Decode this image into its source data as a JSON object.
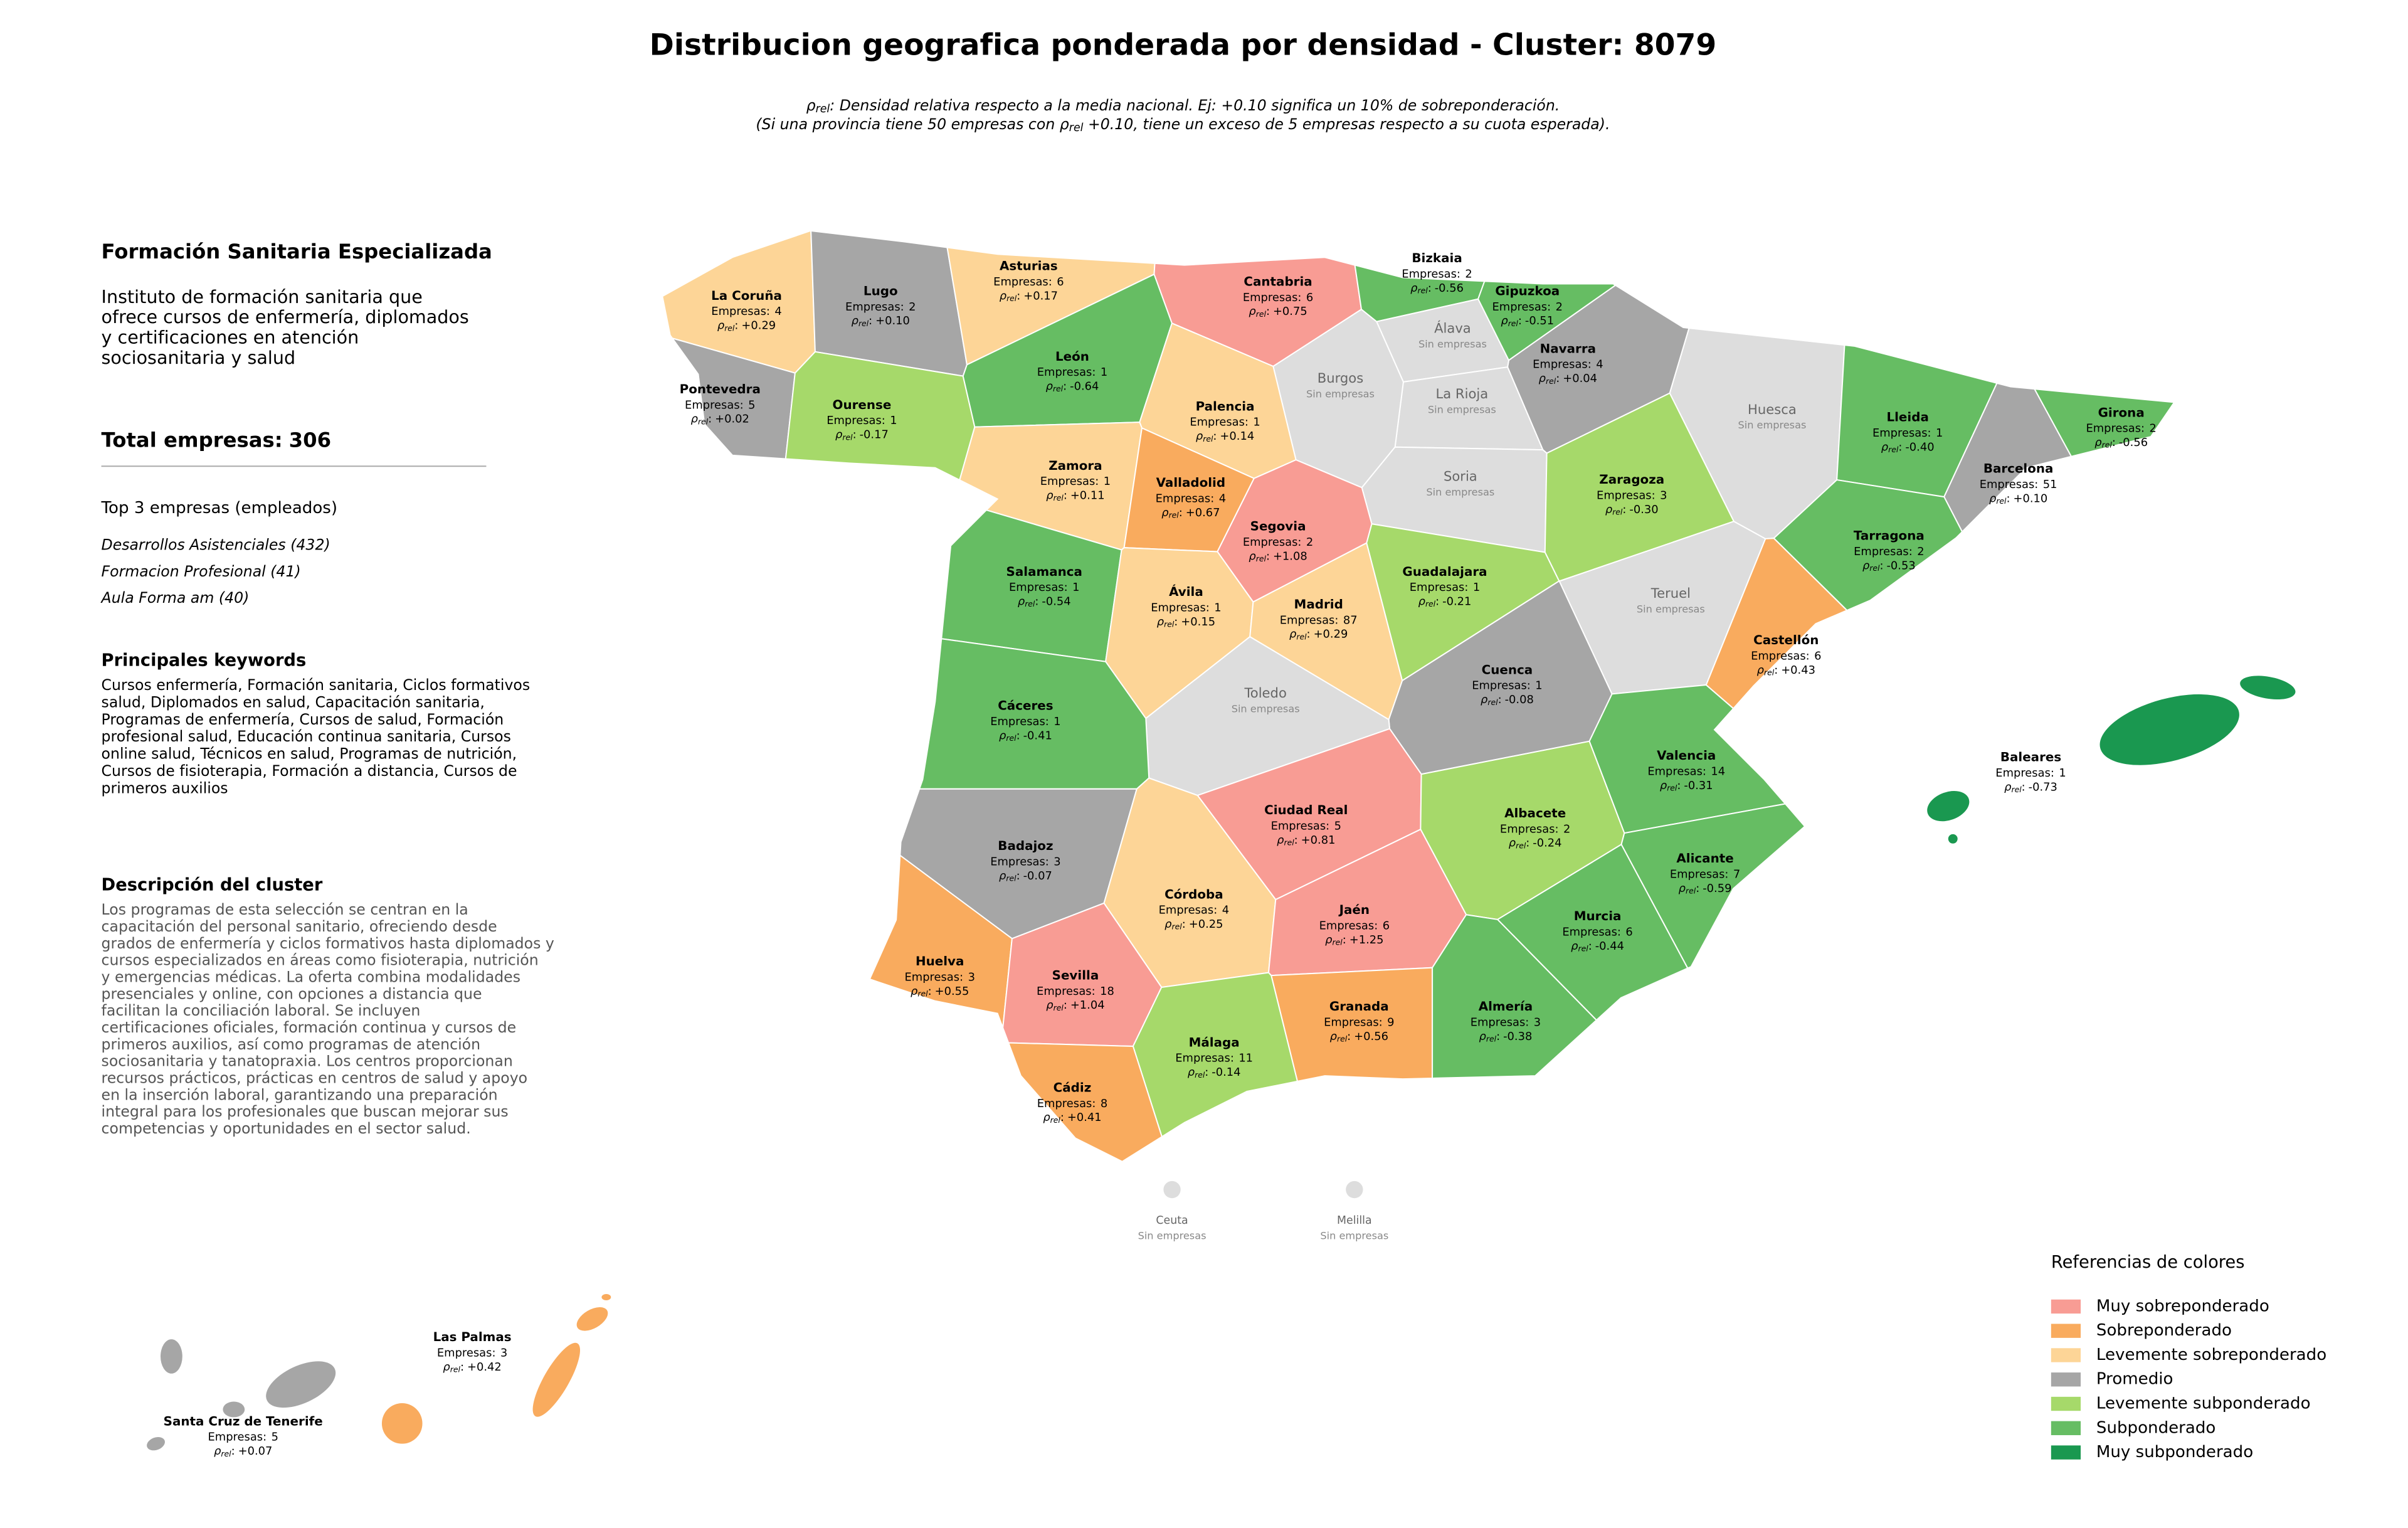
{
  "title": "Distribucion geografica ponderada por densidad - Cluster: 8079",
  "subtitle": [
    {
      "pre": "ρ",
      "sub": "rel",
      "post": ": Densidad relativa respecto a la media nacional. Ej: +0.10 significa un 10% de sobreponderación."
    },
    {
      "pre": "(Si una provincia tiene 50 empresas con ρ",
      "sub": "rel",
      "post": " +0.10, tiene un exceso de 5 empresas respecto a su cuota esperada)."
    }
  ],
  "labels": {
    "companies": "Empresas:",
    "rho": "ρ",
    "rho_sub": "rel",
    "rho_sep": ":",
    "none": "Sin empresas"
  },
  "sidebar": {
    "heading": "Formación Sanitaria Especializada",
    "intro": [
      "Instituto de formación sanitaria que",
      "ofrece cursos de enfermería, diplomados",
      "y certificaciones en atención",
      "sociosanitaria y salud"
    ],
    "total_label": "Total empresas:",
    "total": 306,
    "top_heading": "Top 3 empresas (empleados)",
    "top": [
      "Desarrollos Asistenciales (432)",
      "Formacion Profesional (41)",
      "Aula Forma am (40)"
    ],
    "keywords_heading": "Principales keywords",
    "keywords": [
      "Cursos enfermería, Formación sanitaria, Ciclos formativos",
      "salud, Diplomados en salud, Capacitación sanitaria,",
      "Programas de enfermería, Cursos de salud, Formación",
      "profesional salud, Educación continua sanitaria, Cursos",
      "online salud, Técnicos en salud, Programas de nutrición,",
      "Cursos de fisioterapia, Formación a distancia, Cursos de",
      "primeros auxilios"
    ],
    "description_heading": "Descripción del cluster",
    "description": [
      "Los programas de esta selección se centran en la",
      "capacitación del personal sanitario, ofreciendo desde",
      "grados de enfermería y ciclos formativos hasta diplomados y",
      "cursos especializados en áreas como fisioterapia, nutrición",
      "y emergencias médicas. La oferta combina modalidades",
      "presenciales y online, con opciones a distancia que",
      "facilitan la conciliación laboral. Se incluyen",
      "certificaciones oficiales, formación continua y cursos de",
      "primeros auxilios, así como programas de atención",
      "sociosanitaria y tanatopraxia. Los centros proporcionan",
      "recursos prácticos, prácticas en centros de salud y apoyo",
      "en la inserción laboral, garantizando una preparación",
      "integral para los profesionales que buscan mejorar sus",
      "competencias y oportunidades en el sector salud."
    ]
  },
  "legend": {
    "title": "Referencias de colores",
    "items": [
      {
        "label": "Muy sobreponderado",
        "color": "#f89c94"
      },
      {
        "label": "Sobreponderado",
        "color": "#f9ab5e"
      },
      {
        "label": "Levemente sobreponderado",
        "color": "#fdd597"
      },
      {
        "label": "Promedio",
        "color": "#a6a6a6"
      },
      {
        "label": "Levemente subponderado",
        "color": "#a6d96a"
      },
      {
        "label": "Subponderado",
        "color": "#66bd63"
      },
      {
        "label": "Muy subponderado",
        "color": "#1a9850"
      }
    ]
  },
  "provinces": [
    {
      "name": "La Coruña",
      "companies": 4,
      "rho": "+0.29",
      "color": "#fdd597"
    },
    {
      "name": "Lugo",
      "companies": 2,
      "rho": "+0.10",
      "color": "#a6a6a6"
    },
    {
      "name": "Asturias",
      "companies": 6,
      "rho": "+0.17",
      "color": "#fdd597"
    },
    {
      "name": "Cantabria",
      "companies": 6,
      "rho": "+0.75",
      "color": "#f89c94"
    },
    {
      "name": "Bizkaia",
      "companies": 2,
      "rho": "-0.56",
      "color": "#66bd63"
    },
    {
      "name": "Gipuzkoa",
      "companies": 2,
      "rho": "-0.51",
      "color": "#66bd63"
    },
    {
      "name": "Navarra",
      "companies": 4,
      "rho": "+0.04",
      "color": "#a6a6a6"
    },
    {
      "name": "Álava",
      "color": "#dddddd"
    },
    {
      "name": "La Rioja",
      "color": "#dddddd"
    },
    {
      "name": "Burgos",
      "color": "#dddddd"
    },
    {
      "name": "Pontevedra",
      "companies": 5,
      "rho": "+0.02",
      "color": "#a6a6a6"
    },
    {
      "name": "Ourense",
      "companies": 1,
      "rho": "-0.17",
      "color": "#a6d96a"
    },
    {
      "name": "León",
      "companies": 1,
      "rho": "-0.64",
      "color": "#66bd63"
    },
    {
      "name": "Palencia",
      "companies": 1,
      "rho": "+0.14",
      "color": "#fdd597"
    },
    {
      "name": "Soria",
      "color": "#dddddd"
    },
    {
      "name": "Huesca",
      "color": "#dddddd"
    },
    {
      "name": "Zaragoza",
      "companies": 3,
      "rho": "-0.30",
      "color": "#a6d96a"
    },
    {
      "name": "Lleida",
      "companies": 1,
      "rho": "-0.40",
      "color": "#66bd63"
    },
    {
      "name": "Girona",
      "companies": 2,
      "rho": "-0.56",
      "color": "#66bd63"
    },
    {
      "name": "Barcelona",
      "companies": 51,
      "rho": "+0.10",
      "color": "#a6a6a6"
    },
    {
      "name": "Zamora",
      "companies": 1,
      "rho": "+0.11",
      "color": "#fdd597"
    },
    {
      "name": "Valladolid",
      "companies": 4,
      "rho": "+0.67",
      "color": "#f9ab5e"
    },
    {
      "name": "Segovia",
      "companies": 2,
      "rho": "+1.08",
      "color": "#f89c94"
    },
    {
      "name": "Tarragona",
      "companies": 2,
      "rho": "-0.53",
      "color": "#66bd63"
    },
    {
      "name": "Salamanca",
      "companies": 1,
      "rho": "-0.54",
      "color": "#66bd63"
    },
    {
      "name": "Ávila",
      "companies": 1,
      "rho": "+0.15",
      "color": "#fdd597"
    },
    {
      "name": "Madrid",
      "companies": 87,
      "rho": "+0.29",
      "color": "#fdd597"
    },
    {
      "name": "Guadalajara",
      "companies": 1,
      "rho": "-0.21",
      "color": "#a6d96a"
    },
    {
      "name": "Teruel",
      "color": "#dddddd"
    },
    {
      "name": "Castellón",
      "companies": 6,
      "rho": "+0.43",
      "color": "#f9ab5e"
    },
    {
      "name": "Cuenca",
      "companies": 1,
      "rho": "-0.08",
      "color": "#a6a6a6"
    },
    {
      "name": "Toledo",
      "color": "#dddddd"
    },
    {
      "name": "Cáceres",
      "companies": 1,
      "rho": "-0.41",
      "color": "#66bd63"
    },
    {
      "name": "Valencia",
      "companies": 14,
      "rho": "-0.31",
      "color": "#66bd63"
    },
    {
      "name": "Ciudad Real",
      "companies": 5,
      "rho": "+0.81",
      "color": "#f89c94"
    },
    {
      "name": "Albacete",
      "companies": 2,
      "rho": "-0.24",
      "color": "#a6d96a"
    },
    {
      "name": "Badajoz",
      "companies": 3,
      "rho": "-0.07",
      "color": "#a6a6a6"
    },
    {
      "name": "Alicante",
      "companies": 7,
      "rho": "-0.59",
      "color": "#66bd63"
    },
    {
      "name": "Córdoba",
      "companies": 4,
      "rho": "+0.25",
      "color": "#fdd597"
    },
    {
      "name": "Jaén",
      "companies": 6,
      "rho": "+1.25",
      "color": "#f89c94"
    },
    {
      "name": "Murcia",
      "companies": 6,
      "rho": "-0.44",
      "color": "#66bd63"
    },
    {
      "name": "Huelva",
      "companies": 3,
      "rho": "+0.55",
      "color": "#f9ab5e"
    },
    {
      "name": "Sevilla",
      "companies": 18,
      "rho": "+1.04",
      "color": "#f89c94"
    },
    {
      "name": "Granada",
      "companies": 9,
      "rho": "+0.56",
      "color": "#f9ab5e"
    },
    {
      "name": "Almería",
      "companies": 3,
      "rho": "-0.38",
      "color": "#66bd63"
    },
    {
      "name": "Málaga",
      "companies": 11,
      "rho": "-0.14",
      "color": "#a6d96a"
    },
    {
      "name": "Cádiz",
      "companies": 8,
      "rho": "+0.41",
      "color": "#f9ab5e"
    },
    {
      "name": "Baleares",
      "companies": 1,
      "rho": "-0.73",
      "color": "#1a9850"
    },
    {
      "name": "Ceuta",
      "color": "#dddddd"
    },
    {
      "name": "Melilla",
      "color": "#dddddd"
    },
    {
      "name": "Las Palmas",
      "companies": 3,
      "rho": "+0.42",
      "color": "#f9ab5e"
    },
    {
      "name": "Santa Cruz de Tenerife",
      "companies": 5,
      "rho": "+0.07",
      "color": "#a6a6a6"
    }
  ]
}
